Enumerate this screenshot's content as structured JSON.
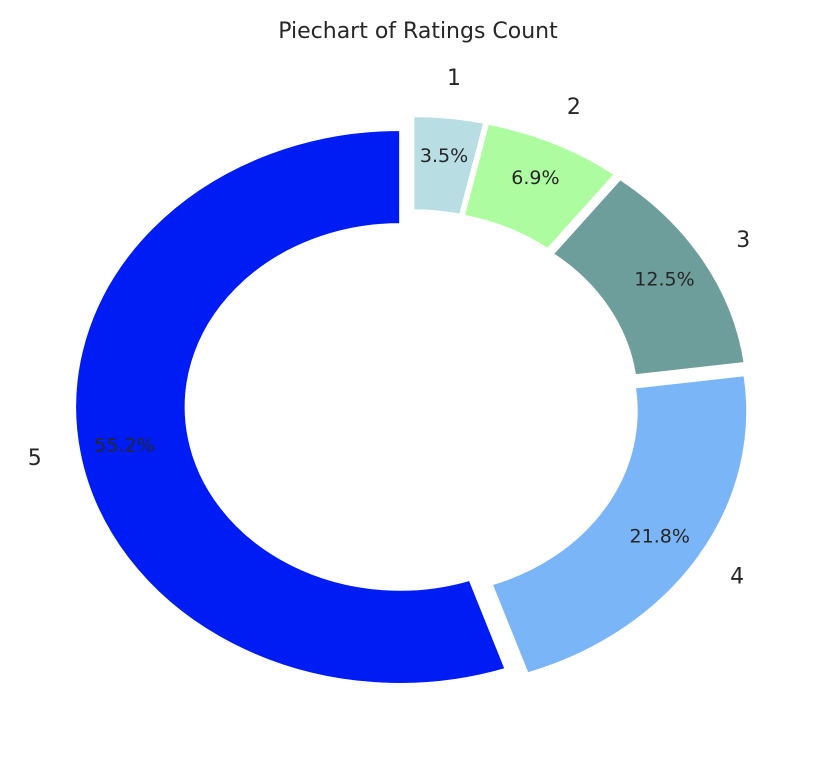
{
  "chart_data": {
    "type": "donut",
    "title": "Piechart of Ratings Count",
    "categories": [
      "1",
      "2",
      "3",
      "4",
      "5"
    ],
    "values": [
      3.5,
      6.9,
      12.5,
      21.8,
      55.2
    ],
    "value_labels": [
      "3.5%",
      "6.9%",
      "12.5%",
      "21.8%",
      "55.2%"
    ],
    "colors": [
      "#b8dde3",
      "#aefca0",
      "#6d9e9c",
      "#7ab5f7",
      "#001cf5"
    ]
  }
}
